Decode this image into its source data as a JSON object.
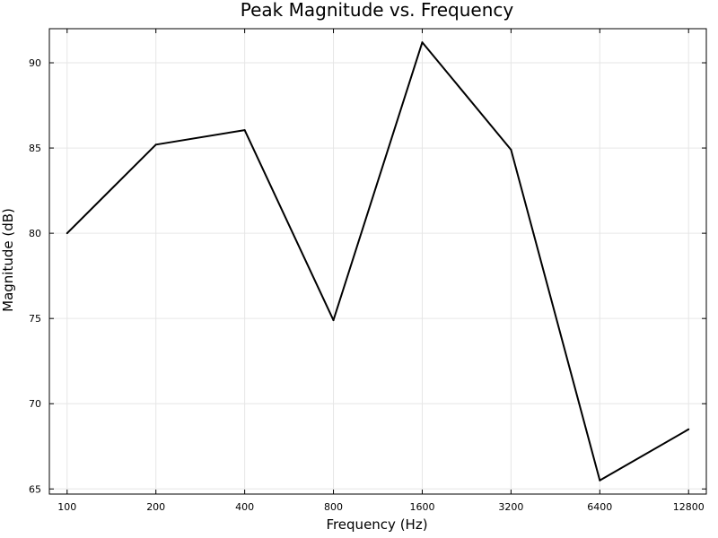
{
  "chart_data": {
    "type": "line",
    "title": "Peak Magnitude vs. Frequency",
    "xlabel": "Frequency (Hz)",
    "ylabel": "Magnitude (dB)",
    "x_scale": "log2",
    "x": [
      100,
      200,
      400,
      800,
      1600,
      3200,
      6400,
      12800
    ],
    "x_tick_labels": [
      "100",
      "200",
      "400",
      "800",
      "1600",
      "3200",
      "6400",
      "12800"
    ],
    "y_ticks": [
      65,
      70,
      75,
      80,
      85,
      90
    ],
    "y_tick_labels": [
      "65",
      "70",
      "75",
      "80",
      "85",
      "90"
    ],
    "ylim": [
      64.7,
      92.0
    ],
    "series": [
      {
        "values": [
          80.0,
          85.2,
          86.05,
          74.9,
          91.2,
          84.9,
          65.5,
          68.5
        ],
        "color": "#000000"
      }
    ],
    "grid": true,
    "legend": "none"
  }
}
